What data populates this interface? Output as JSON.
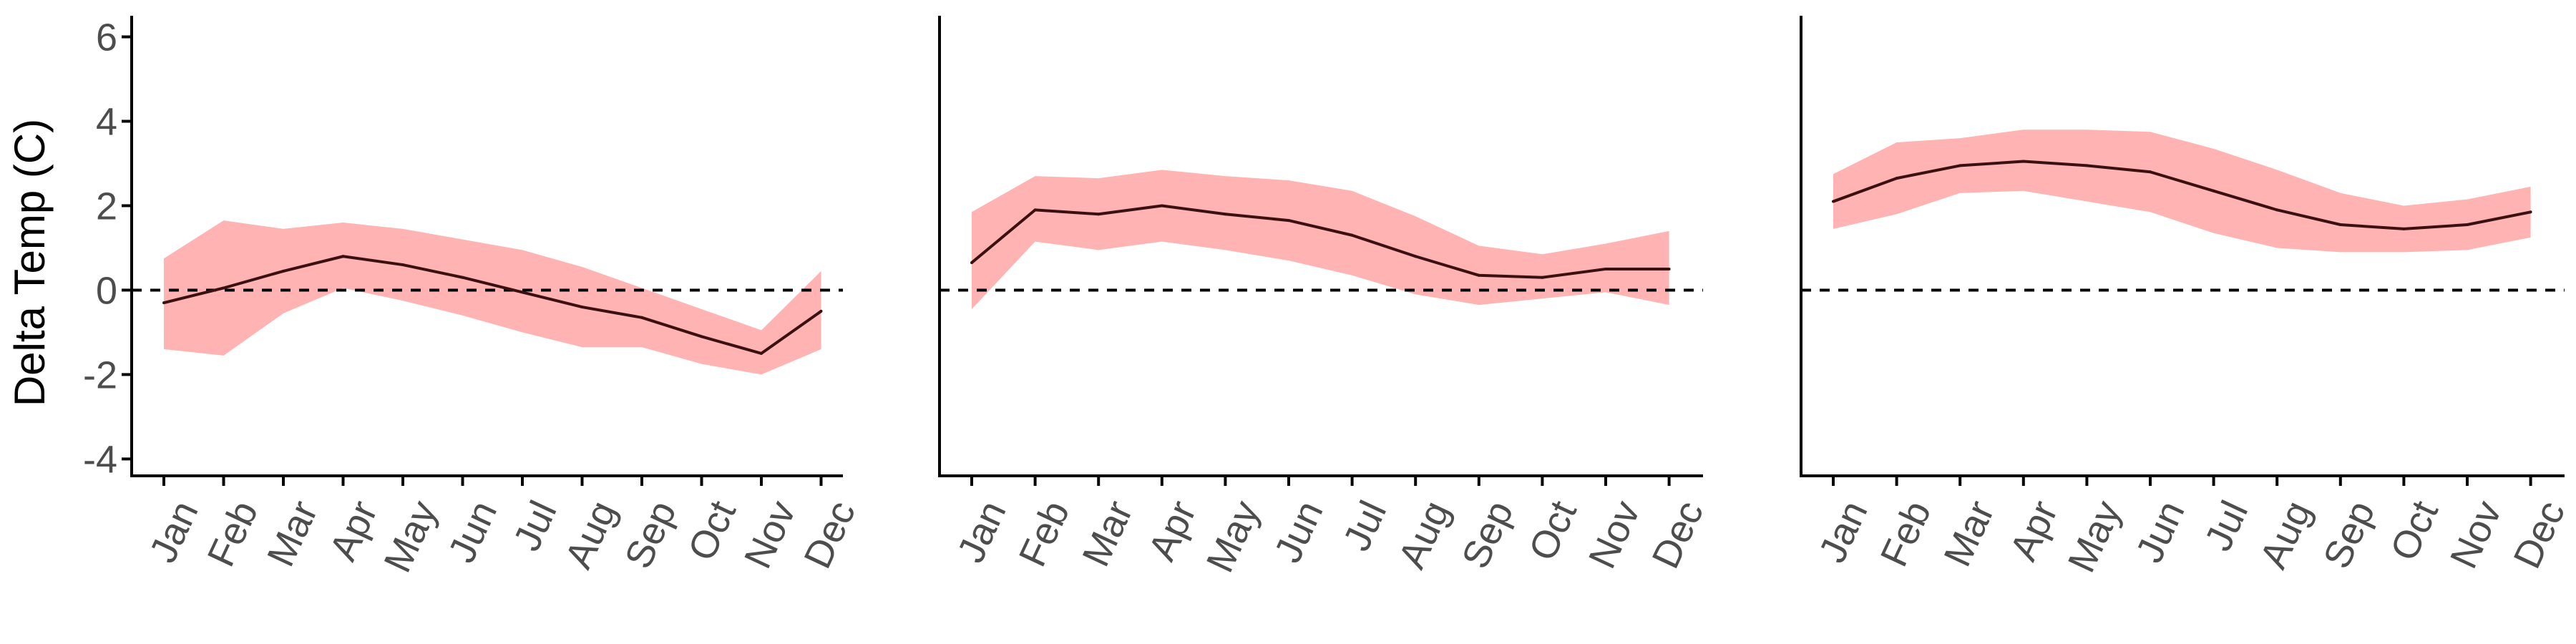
{
  "figure": {
    "ylabel": "Delta Temp (C)"
  },
  "colors": {
    "ribbon": "#ffb3b3",
    "line": "#3a1010",
    "axis": "#000000",
    "tick_label": "#4d4d4d",
    "reference_line": "#000000"
  },
  "chart_data": [
    {
      "type": "area",
      "panel": "left",
      "categories": [
        "Jan",
        "Feb",
        "Mar",
        "Apr",
        "May",
        "Jun",
        "Jul",
        "Aug",
        "Sep",
        "Oct",
        "Nov",
        "Dec"
      ],
      "ylim": [
        -4.4,
        6.5
      ],
      "yticks": [
        -4,
        -2,
        0,
        2,
        4,
        6
      ],
      "show_yticks": true,
      "reference_line": {
        "y": 0,
        "style": "dashed"
      },
      "grid": false,
      "series": [
        {
          "role": "mean",
          "values": [
            -0.3,
            0.05,
            0.45,
            0.8,
            0.6,
            0.3,
            -0.05,
            -0.4,
            -0.65,
            -1.1,
            -1.5,
            -0.5
          ]
        },
        {
          "role": "lower",
          "values": [
            -1.4,
            -1.55,
            -0.55,
            0.05,
            -0.25,
            -0.6,
            -1.0,
            -1.35,
            -1.35,
            -1.75,
            -2.0,
            -1.4
          ]
        },
        {
          "role": "upper",
          "values": [
            0.75,
            1.65,
            1.45,
            1.6,
            1.45,
            1.2,
            0.95,
            0.55,
            0.05,
            -0.45,
            -0.95,
            0.45
          ]
        }
      ]
    },
    {
      "type": "area",
      "panel": "middle",
      "categories": [
        "Jan",
        "Feb",
        "Mar",
        "Apr",
        "May",
        "Jun",
        "Jul",
        "Aug",
        "Sep",
        "Oct",
        "Nov",
        "Dec"
      ],
      "ylim": [
        -4.4,
        6.5
      ],
      "show_yticks": false,
      "reference_line": {
        "y": 0,
        "style": "dashed"
      },
      "grid": false,
      "series": [
        {
          "role": "mean",
          "values": [
            0.65,
            1.9,
            1.8,
            2.0,
            1.8,
            1.65,
            1.3,
            0.8,
            0.35,
            0.3,
            0.5,
            0.5
          ]
        },
        {
          "role": "lower",
          "values": [
            -0.45,
            1.15,
            0.95,
            1.15,
            0.95,
            0.7,
            0.35,
            -0.1,
            -0.35,
            -0.2,
            -0.05,
            -0.35
          ]
        },
        {
          "role": "upper",
          "values": [
            1.85,
            2.7,
            2.65,
            2.85,
            2.7,
            2.6,
            2.35,
            1.75,
            1.05,
            0.85,
            1.1,
            1.4
          ]
        }
      ]
    },
    {
      "type": "area",
      "panel": "right",
      "categories": [
        "Jan",
        "Feb",
        "Mar",
        "Apr",
        "May",
        "Jun",
        "Jul",
        "Aug",
        "Sep",
        "Oct",
        "Nov",
        "Dec"
      ],
      "ylim": [
        -4.4,
        6.5
      ],
      "show_yticks": false,
      "reference_line": {
        "y": 0,
        "style": "dashed"
      },
      "grid": false,
      "series": [
        {
          "role": "mean",
          "values": [
            2.1,
            2.65,
            2.95,
            3.05,
            2.95,
            2.8,
            2.35,
            1.9,
            1.55,
            1.45,
            1.55,
            1.85
          ]
        },
        {
          "role": "lower",
          "values": [
            1.45,
            1.8,
            2.3,
            2.35,
            2.1,
            1.85,
            1.35,
            1.0,
            0.9,
            0.9,
            0.95,
            1.25
          ]
        },
        {
          "role": "upper",
          "values": [
            2.75,
            3.5,
            3.6,
            3.8,
            3.8,
            3.75,
            3.35,
            2.85,
            2.3,
            2.0,
            2.15,
            2.45
          ]
        }
      ]
    }
  ]
}
